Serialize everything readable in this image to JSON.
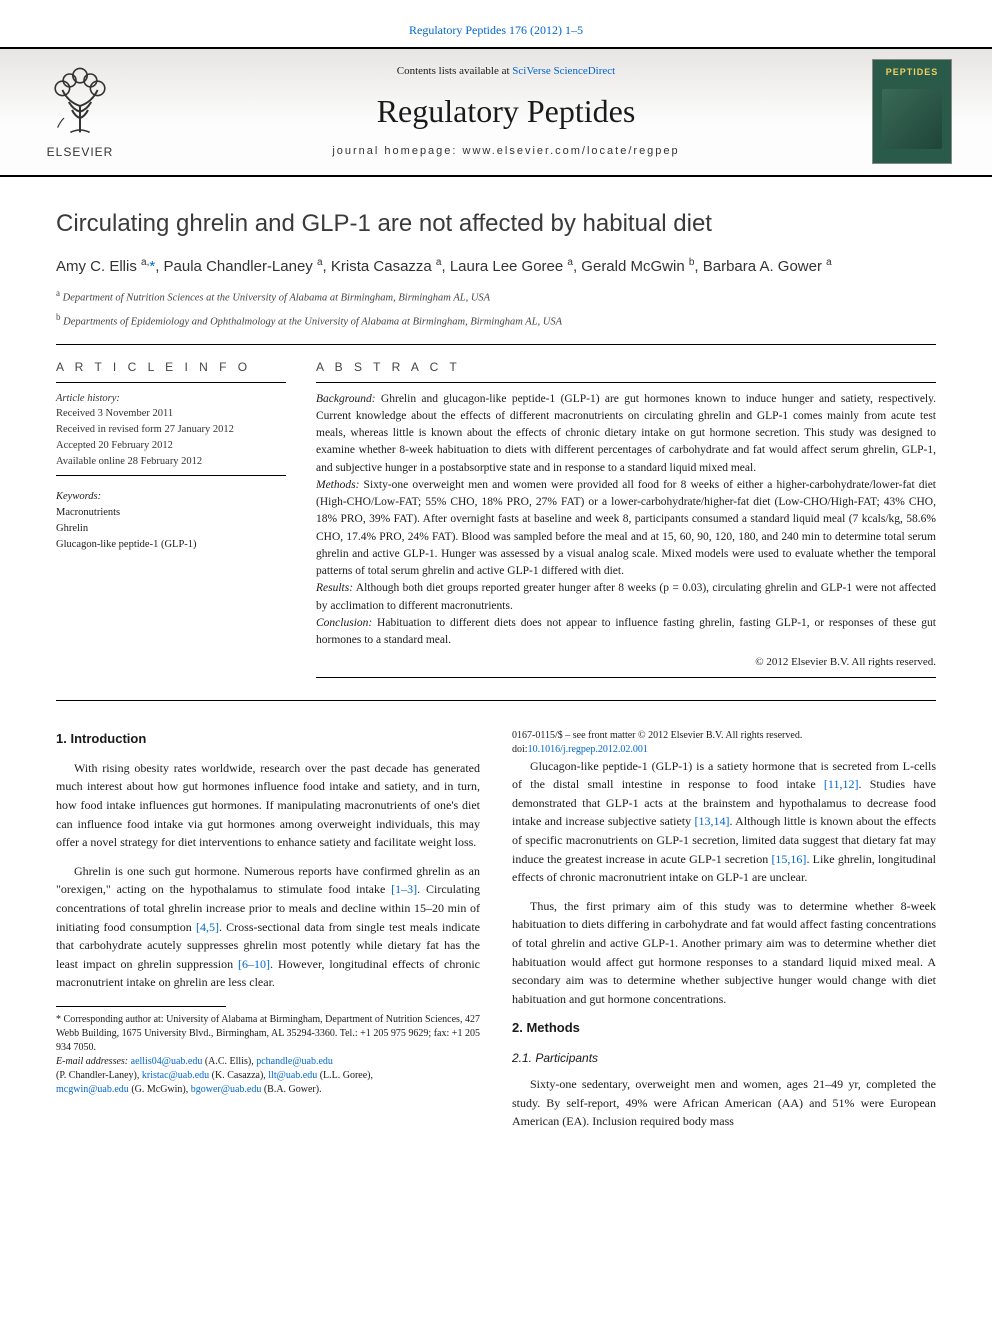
{
  "header": {
    "citation_prefix": "",
    "citation_link": "Regulatory Peptides 176 (2012) 1–5",
    "contents_prefix": "Contents lists available at ",
    "contents_link": "SciVerse ScienceDirect",
    "journal_title": "Regulatory Peptides",
    "homepage_label": "journal homepage: www.elsevier.com/locate/regpep",
    "elsevier": "ELSEVIER",
    "cover_label": "PEPTIDES"
  },
  "article": {
    "title": "Circulating ghrelin and GLP-1 are not affected by habitual diet",
    "authors_html": "Amy C. Ellis <sup>a,</sup><a href=\"#\">*</a>, Paula Chandler-Laney <sup>a</sup>, Krista Casazza <sup>a</sup>, Laura Lee Goree <sup>a</sup>, Gerald McGwin <sup>b</sup>, Barbara A. Gower <sup>a</sup>",
    "affiliations": [
      {
        "sup": "a",
        "text": "Department of Nutrition Sciences at the University of Alabama at Birmingham, Birmingham AL, USA"
      },
      {
        "sup": "b",
        "text": "Departments of Epidemiology and Ophthalmology at the University of Alabama at Birmingham, Birmingham AL, USA"
      }
    ]
  },
  "info": {
    "left_heading": "A R T I C L E   I N F O",
    "history_label": "Article history:",
    "history": [
      "Received 3 November 2011",
      "Received in revised form 27 January 2012",
      "Accepted 20 February 2012",
      "Available online 28 February 2012"
    ],
    "keywords_label": "Keywords:",
    "keywords": [
      "Macronutrients",
      "Ghrelin",
      "Glucagon-like peptide-1 (GLP-1)"
    ],
    "right_heading": "A B S T R A C T"
  },
  "abstract": {
    "background_label": "Background:",
    "background": " Ghrelin and glucagon-like peptide-1 (GLP-1) are gut hormones known to induce hunger and satiety, respectively. Current knowledge about the effects of different macronutrients on circulating ghrelin and GLP-1 comes mainly from acute test meals, whereas little is known about the effects of chronic dietary intake on gut hormone secretion. This study was designed to examine whether 8-week habituation to diets with different percentages of carbohydrate and fat would affect serum ghrelin, GLP-1, and subjective hunger in a postabsorptive state and in response to a standard liquid mixed meal.",
    "methods_label": "Methods:",
    "methods": " Sixty-one overweight men and women were provided all food for 8 weeks of either a higher-carbohydrate/lower-fat diet (High-CHO/Low-FAT; 55% CHO, 18% PRO, 27% FAT) or a lower-carbohydrate/higher-fat diet (Low-CHO/High-FAT; 43% CHO, 18% PRO, 39% FAT). After overnight fasts at baseline and week 8, participants consumed a standard liquid meal (7 kcals/kg, 58.6% CHO, 17.4% PRO, 24% FAT). Blood was sampled before the meal and at 15, 60, 90, 120, 180, and 240 min to determine total serum ghrelin and active GLP-1. Hunger was assessed by a visual analog scale. Mixed models were used to evaluate whether the temporal patterns of total serum ghrelin and active GLP-1 differed with diet.",
    "results_label": "Results:",
    "results": " Although both diet groups reported greater hunger after 8 weeks (p = 0.03), circulating ghrelin and GLP-1 were not affected by acclimation to different macronutrients.",
    "conclusion_label": "Conclusion:",
    "conclusion": " Habituation to different diets does not appear to influence fasting ghrelin, fasting GLP-1, or responses of these gut hormones to a standard meal.",
    "copyright": "© 2012 Elsevier B.V. All rights reserved."
  },
  "body": {
    "intro_heading": "1. Introduction",
    "intro_p1": "With rising obesity rates worldwide, research over the past decade has generated much interest about how gut hormones influence food intake and satiety, and in turn, how food intake influences gut hormones. If manipulating macronutrients of one's diet can influence food intake via gut hormones among overweight individuals, this may offer a novel strategy for diet interventions to enhance satiety and facilitate weight loss.",
    "intro_p2_pre": "Ghrelin is one such gut hormone. Numerous reports have confirmed ghrelin as an \"orexigen,\" acting on the hypothalamus to stimulate food intake ",
    "ref_1_3": "[1–3]",
    "intro_p2_mid1": ". Circulating concentrations of total ghrelin increase prior to meals and decline within 15–20 min of initiating food consumption ",
    "ref_4_5": "[4,5]",
    "intro_p2_mid2": ". Cross-sectional data from single test meals indicate that carbohydrate acutely suppresses ghrelin most potently while dietary fat has the least impact on ghrelin suppression ",
    "ref_6_10": "[6–10]",
    "intro_p2_post": ". However, longitudinal effects of chronic macronutrient intake on ghrelin are less clear.",
    "intro_p3_pre": "Glucagon-like peptide-1 (GLP-1) is a satiety hormone that is secreted from L-cells of the distal small intestine in response to food intake ",
    "ref_11_12": "[11,12]",
    "intro_p3_mid1": ". Studies have demonstrated that GLP-1 acts at the brainstem and hypothalamus to decrease food intake and increase subjective satiety ",
    "ref_13_14": "[13,14]",
    "intro_p3_mid2": ". Although little is known about the effects of specific macronutrients on GLP-1 secretion, limited data suggest that dietary fat may induce the greatest increase in acute GLP-1 secretion ",
    "ref_15_16": "[15,16]",
    "intro_p3_post": ". Like ghrelin, longitudinal effects of chronic macronutrient intake on GLP-1 are unclear.",
    "intro_p4": "Thus, the first primary aim of this study was to determine whether 8-week habituation to diets differing in carbohydrate and fat would affect fasting concentrations of total ghrelin and active GLP-1. Another primary aim was to determine whether diet habituation would affect gut hormone responses to a standard liquid mixed meal. A secondary aim was to determine whether subjective hunger would change with diet habituation and gut hormone concentrations.",
    "methods_heading": "2. Methods",
    "participants_heading": "2.1. Participants",
    "participants_p": "Sixty-one sedentary, overweight men and women, ages 21–49 yr, completed the study. By self-report, 49% were African American (AA) and 51% were European American (EA). Inclusion required body mass"
  },
  "footnotes": {
    "corresponding": "* Corresponding author at: University of Alabama at Birmingham, Department of Nutrition Sciences, 427 Webb Building, 1675 University Blvd., Birmingham, AL 35294-3360. Tel.: +1 205 975 9629; fax: +1 205 934 7050.",
    "email_label": "E-mail addresses: ",
    "emails": [
      {
        "addr": "aellis04@uab.edu",
        "who": "(A.C. Ellis), "
      },
      {
        "addr": "pchandle@uab.edu",
        "who": ""
      }
    ],
    "emails_line2": [
      {
        "pre": "(P. Chandler-Laney), ",
        "addr": "kristac@uab.edu",
        "who": " (K. Casazza), "
      },
      {
        "pre": "",
        "addr": "llt@uab.edu",
        "who": " (L.L. Goree),"
      }
    ],
    "emails_line3": [
      {
        "pre": "",
        "addr": "mcgwin@uab.edu",
        "who": " (G. McGwin), "
      },
      {
        "pre": "",
        "addr": "bgower@uab.edu",
        "who": " (B.A. Gower)."
      }
    ]
  },
  "footer": {
    "line1": "0167-0115/$ – see front matter © 2012 Elsevier B.V. All rights reserved.",
    "doi_pre": "doi:",
    "doi": "10.1016/j.regpep.2012.02.001"
  },
  "colors": {
    "link": "#0066cc",
    "text": "#1a1a1a",
    "banner_grad_top": "#e7e5e3",
    "banner_grad_bot": "#fdfdfd",
    "cover_bg": "#2a5a4a",
    "cover_label": "#f0d060"
  }
}
